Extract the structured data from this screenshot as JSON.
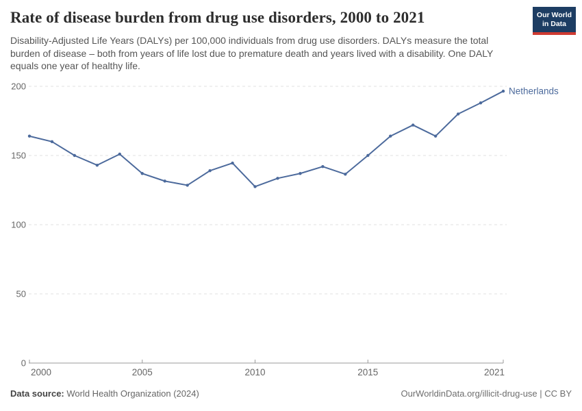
{
  "header": {
    "title": "Rate of disease burden from drug use disorders, 2000 to 2021",
    "subtitle": "Disability-Adjusted Life Years (DALYs) per 100,000 individuals from drug use disorders. DALYs measure the total burden of disease – both from years of life lost due to premature death and years lived with a disability. One DALY equals one year of healthy life.",
    "logo": {
      "line1": "Our World",
      "line2": "in Data"
    }
  },
  "chart_data": {
    "type": "line",
    "title": "Rate of disease burden from drug use disorders, 2000 to 2021",
    "x": [
      2000,
      2001,
      2002,
      2003,
      2004,
      2005,
      2006,
      2007,
      2008,
      2009,
      2010,
      2011,
      2012,
      2013,
      2014,
      2015,
      2016,
      2017,
      2018,
      2019,
      2020,
      2021
    ],
    "series": [
      {
        "name": "Netherlands",
        "color": "#4c6a9c",
        "values": [
          164,
          160,
          150,
          143,
          151,
          137,
          131.5,
          128.5,
          139,
          144.5,
          127.5,
          133.5,
          137,
          142,
          136.5,
          150,
          164,
          172,
          164,
          180,
          188,
          196.5
        ]
      }
    ],
    "xlim": [
      2000,
      2021
    ],
    "ylim": [
      0,
      200
    ],
    "x_ticks": [
      2000,
      2005,
      2010,
      2015,
      2021
    ],
    "y_ticks": [
      0,
      50,
      100,
      150,
      200
    ],
    "grid": "horizontal-dashed",
    "legend_position": "end-of-line-label"
  },
  "footer": {
    "source_label": "Data source:",
    "source_text": " World Health Organization (2024)",
    "credit": "OurWorldinData.org/illicit-drug-use | CC BY"
  },
  "colors": {
    "line": "#4c6a9c",
    "logo_bg": "#1d3d63",
    "logo_accent": "#cf3b32",
    "gridline": "#e2e2e2",
    "axis": "#999999",
    "tick_text": "#666666"
  }
}
